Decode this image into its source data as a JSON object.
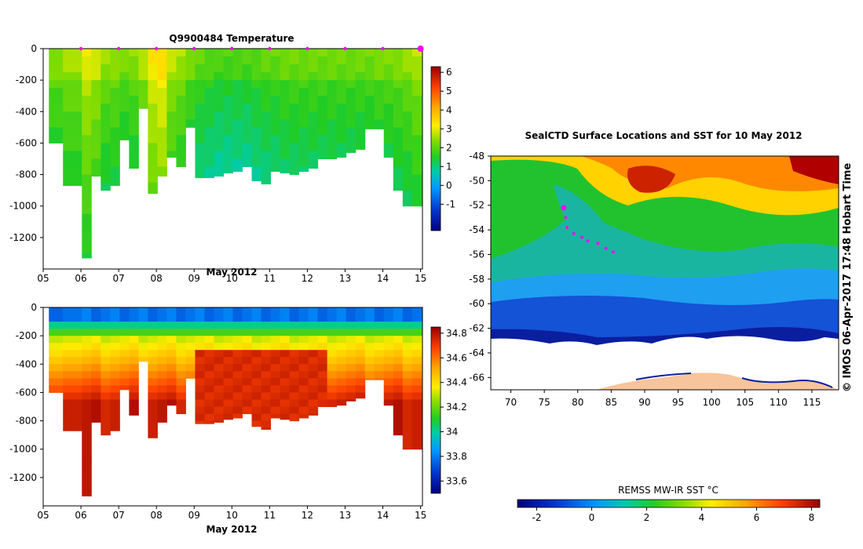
{
  "chart_data": [
    {
      "id": "temperature-section",
      "type": "heatmap",
      "title": "Q9900484  Temperature",
      "xlabel": "May 2012",
      "x_ticks": [
        "05",
        "06",
        "07",
        "08",
        "09",
        "10",
        "11",
        "12",
        "13",
        "14",
        "15"
      ],
      "xlim": [
        5.0,
        15.05
      ],
      "ylim": [
        0,
        -1400
      ],
      "y_ticks": [
        0,
        -200,
        -400,
        -600,
        -800,
        -1000,
        -1200
      ],
      "colorbar": {
        "min": -2.4,
        "max": 6.3,
        "ticks": [
          6,
          5,
          4,
          3,
          2,
          1,
          0,
          -1
        ]
      },
      "profile_times": [
        5.15,
        5.9,
        6.15,
        6.4,
        6.65,
        6.9,
        7.15,
        7.4,
        7.65,
        7.9,
        8.15,
        8.4,
        8.65,
        8.9,
        9.15,
        9.4,
        9.65,
        9.9,
        10.15,
        10.4,
        10.65,
        10.9,
        11.15,
        11.4,
        11.65,
        11.9,
        12.15,
        12.4,
        12.65,
        12.9,
        13.15,
        13.4,
        13.65,
        13.9,
        14.15,
        14.4,
        14.65,
        14.9
      ],
      "profile_max_depth": [
        600,
        870,
        1330,
        810,
        900,
        870,
        580,
        760,
        380,
        920,
        810,
        690,
        750,
        500,
        820,
        820,
        810,
        790,
        780,
        750,
        840,
        860,
        780,
        790,
        800,
        780,
        760,
        700,
        700,
        690,
        660,
        640,
        510,
        510,
        690,
        900,
        1000,
        1000
      ],
      "profile_upper_temp": [
        2.1,
        2.3,
        2.8,
        2.6,
        2.2,
        2.2,
        2.0,
        2.1,
        2.4,
        3.0,
        3.2,
        2.5,
        2.3,
        2.0,
        1.8,
        1.7,
        1.6,
        1.6,
        1.6,
        1.6,
        1.7,
        1.8,
        1.8,
        1.9,
        1.9,
        1.9,
        1.9,
        1.9,
        1.9,
        1.9,
        1.9,
        1.9,
        1.9,
        2.0,
        2.0,
        2.1,
        2.2,
        2.4
      ],
      "surface_markers": [
        6,
        7,
        8,
        9,
        10,
        11,
        12,
        13,
        14,
        15
      ]
    },
    {
      "id": "salinity-section",
      "type": "heatmap",
      "title": "",
      "xlabel": "May 2012",
      "x_ticks": [
        "05",
        "06",
        "07",
        "08",
        "09",
        "10",
        "11",
        "12",
        "13",
        "14",
        "15"
      ],
      "xlim": [
        5.0,
        15.05
      ],
      "ylim": [
        0,
        -1400
      ],
      "y_ticks": [
        0,
        -200,
        -400,
        -600,
        -800,
        -1000,
        -1200
      ],
      "colorbar": {
        "min": 33.5,
        "max": 34.85,
        "ticks": [
          34.8,
          34.6,
          34.4,
          34.2,
          34,
          33.8,
          33.6
        ]
      },
      "profile_times": [
        5.15,
        5.9,
        6.15,
        6.4,
        6.65,
        6.9,
        7.15,
        7.4,
        7.65,
        7.9,
        8.15,
        8.4,
        8.65,
        8.9,
        9.15,
        9.4,
        9.65,
        9.9,
        10.15,
        10.4,
        10.65,
        10.9,
        11.15,
        11.4,
        11.65,
        11.9,
        12.15,
        12.4,
        12.65,
        12.9,
        13.15,
        13.4,
        13.65,
        13.9,
        14.15,
        14.4,
        14.65,
        14.9
      ],
      "profile_max_depth": [
        600,
        870,
        1330,
        810,
        900,
        870,
        580,
        760,
        380,
        920,
        810,
        690,
        750,
        500,
        820,
        820,
        810,
        790,
        780,
        750,
        840,
        860,
        780,
        790,
        800,
        780,
        760,
        700,
        700,
        690,
        660,
        640,
        510,
        510,
        690,
        900,
        1000,
        1000
      ]
    },
    {
      "id": "sst-map",
      "type": "heatmap",
      "title": "SealCTD Surface Locations and SST for 10 May 2012",
      "x_ticks": [
        "70",
        "75",
        "80",
        "85",
        "90",
        "95",
        "100",
        "105",
        "110",
        "115"
      ],
      "xlim": [
        67,
        119
      ],
      "y_ticks": [
        "-48",
        "-50",
        "-52",
        "-54",
        "-56",
        "-58",
        "-60",
        "-62",
        "-64",
        "-66"
      ],
      "ylim": [
        -48,
        -67
      ],
      "colorbar": {
        "label": "REMSS MW-IR SST °C",
        "min": -2.7,
        "max": 8.3,
        "ticks": [
          "-2",
          "0",
          "2",
          "4",
          "6",
          "8"
        ]
      },
      "side_text": "© IMOS 06-Apr-2017 17:48 Hobart Time",
      "track": [
        {
          "lon": 77.9,
          "lat": -52.2,
          "current": true
        },
        {
          "lon": 78.2,
          "lat": -53.0
        },
        {
          "lon": 78.4,
          "lat": -53.8
        },
        {
          "lon": 79.4,
          "lat": -54.3
        },
        {
          "lon": 80.6,
          "lat": -54.6
        },
        {
          "lon": 81.5,
          "lat": -54.9
        },
        {
          "lon": 83.0,
          "lat": -55.1
        },
        {
          "lon": 84.2,
          "lat": -55.5
        },
        {
          "lon": 85.3,
          "lat": -55.8
        }
      ]
    }
  ]
}
